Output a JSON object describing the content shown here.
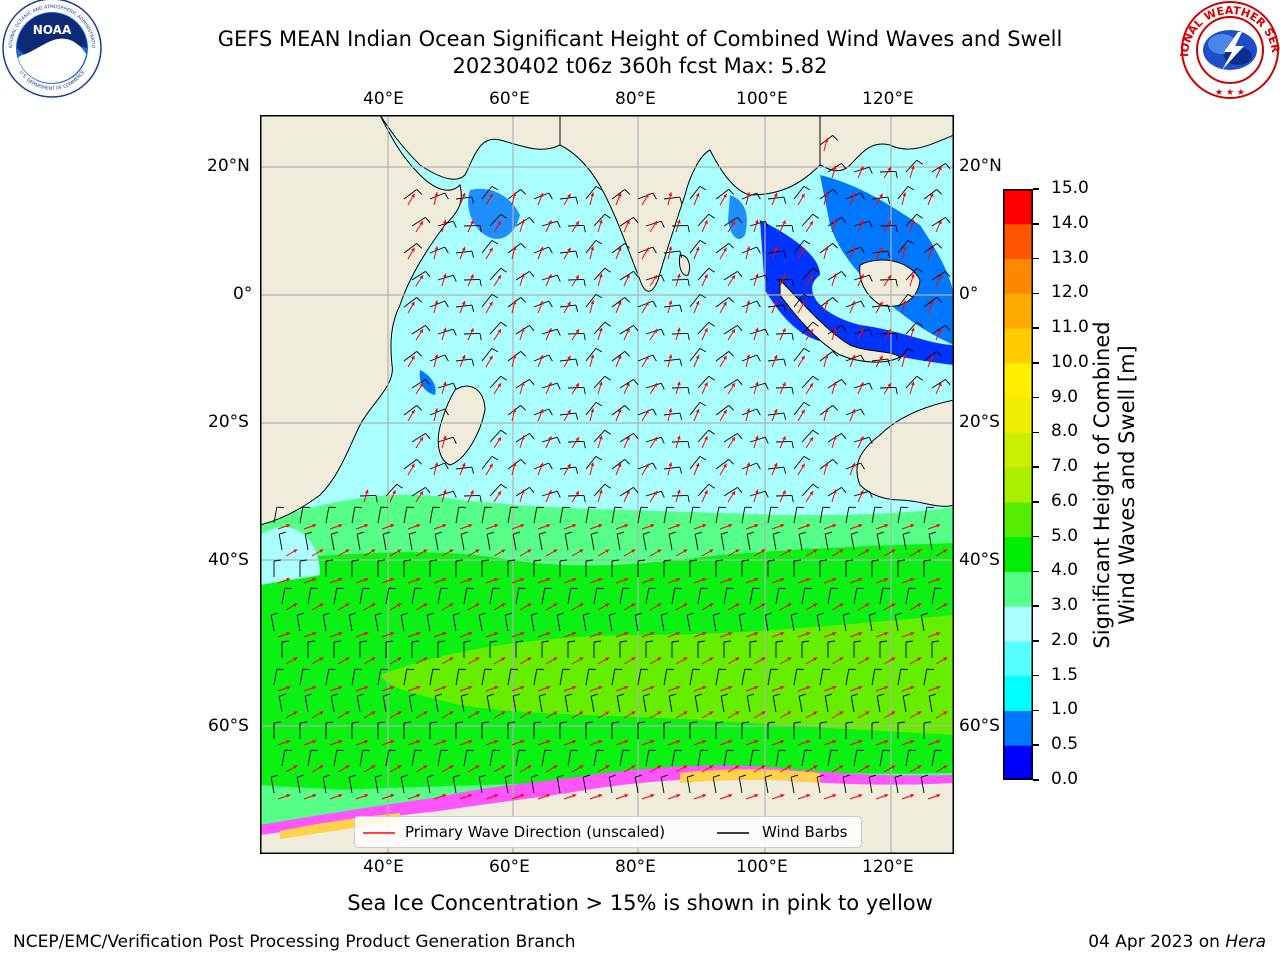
{
  "header": {
    "title_line1": "GEFS MEAN Indian Ocean Significant Height of Combined Wind Waves and Swell",
    "title_line2": "20230402 t06z 360h fcst   Max: 5.82"
  },
  "logos": {
    "left": {
      "name": "NOAA",
      "ring_text_top": "NATIONAL OCEANIC AND ATMOSPHERIC ADMINISTRATION",
      "ring_text_bottom": "U.S. DEPARTMENT OF COMMERCE"
    },
    "right": {
      "ring_text": "NATIONAL WEATHER SERVICE"
    }
  },
  "map": {
    "lon_ticks_top": [
      "40°E",
      "60°E",
      "80°E",
      "100°E",
      "120°E"
    ],
    "lon_ticks_bottom": [
      "40°E",
      "60°E",
      "80°E",
      "100°E",
      "120°E"
    ],
    "lat_ticks_left": [
      "20°N",
      "0°",
      "20°S",
      "40°S",
      "60°S"
    ],
    "lat_ticks_right": [
      "20°N",
      "0°",
      "20°S",
      "40°S",
      "60°S"
    ],
    "colors": {
      "land": "#efecdb",
      "sea_ice_low": "#ff55ff",
      "sea_ice_high": "#ffd24a",
      "wave_arrow": "#ff0000",
      "wind_barb": "#000000"
    }
  },
  "legend": {
    "wave_label": "Primary Wave Direction (unscaled)",
    "barb_label": "Wind Barbs"
  },
  "colorbar": {
    "title_line1": "Significant Height of Combined",
    "title_line2": "Wind Waves and Swell [m]",
    "ticks": [
      "0.0",
      "0.5",
      "1.0",
      "1.5",
      "2.0",
      "3.0",
      "4.0",
      "5.0",
      "6.0",
      "7.0",
      "8.0",
      "9.0",
      "10.0",
      "11.0",
      "12.0",
      "13.0",
      "14.0",
      "15.0"
    ],
    "colors": [
      "#0000ff",
      "#0077ff",
      "#00ffff",
      "#55ffff",
      "#aaffff",
      "#55ff88",
      "#00ee00",
      "#55ee00",
      "#aaee00",
      "#ccee00",
      "#eeee00",
      "#ffee00",
      "#ffcc00",
      "#ffaa00",
      "#ff8800",
      "#ff5500",
      "#ff0000"
    ]
  },
  "note": "Sea Ice Concentration > 15% is shown in pink to yellow",
  "footer": {
    "left": "NCEP/EMC/Verification Post Processing Product Generation Branch",
    "right_date": "04 Apr 2023 on ",
    "right_host": "Hera"
  }
}
